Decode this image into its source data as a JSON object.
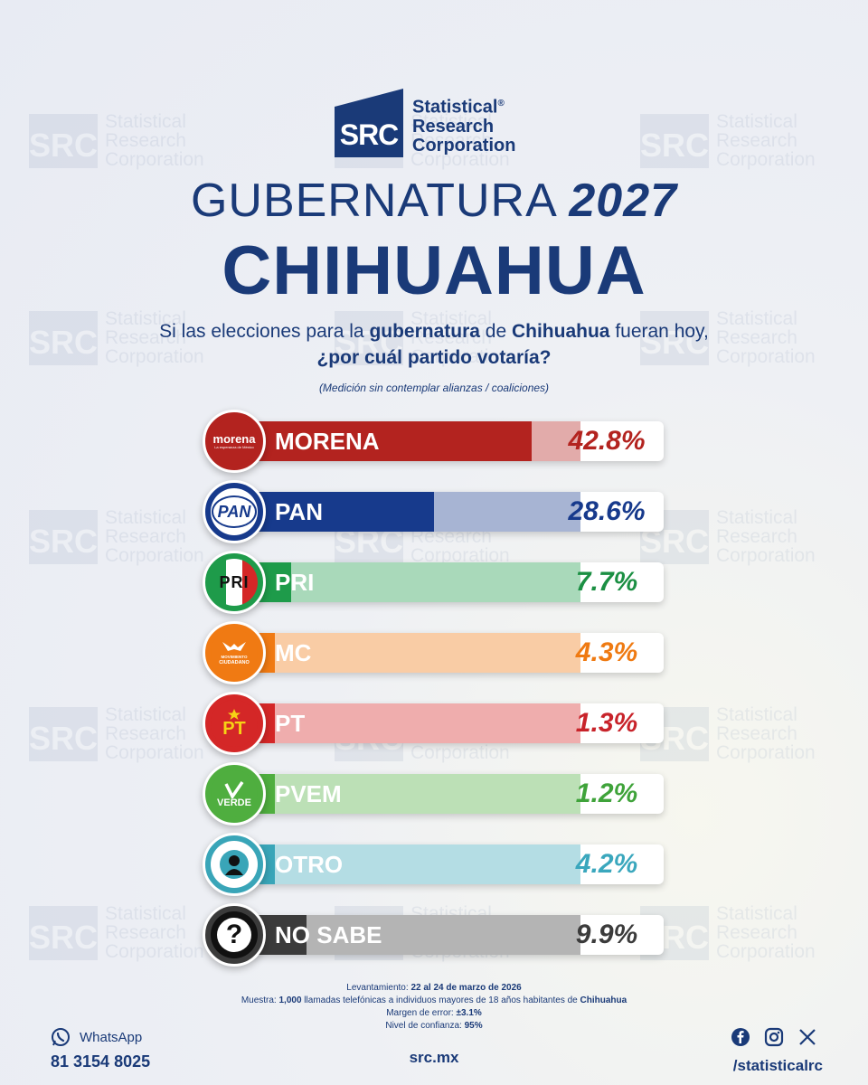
{
  "brand": {
    "logo_initials": "SRC",
    "name_line1": "Statistical",
    "name_line2": "Research",
    "name_line3": "Corporation",
    "registered": "®",
    "color": "#1a3a78"
  },
  "header": {
    "title_word": "GUBERNATURA",
    "title_year": "2027",
    "state": "CHIHUAHUA"
  },
  "question": {
    "part1": "Si las elecciones para la ",
    "bold1": "gubernatura",
    "part2": " de ",
    "bold2": "Chihuahua",
    "part3": " fueran hoy,",
    "line2": "¿por cuál partido votaría?",
    "note": "(Medición sin contemplar alianzas / coaliciones)"
  },
  "chart_data": {
    "type": "bar",
    "orientation": "horizontal",
    "unit": "%",
    "categories": [
      "MORENA",
      "PAN",
      "PRI",
      "MC",
      "PT",
      "PVEM",
      "OTRO",
      "NO SABE"
    ],
    "values": [
      42.8,
      28.6,
      7.7,
      4.3,
      1.3,
      1.2,
      4.2,
      9.9
    ],
    "labels": [
      "42.8%",
      "28.6%",
      "7.7%",
      "4.3%",
      "1.3%",
      "1.2%",
      "4.2%",
      "9.9%"
    ],
    "colors": [
      "#b3231f",
      "#173a8c",
      "#1e9b4a",
      "#f07a13",
      "#d42727",
      "#4fae3f",
      "#39a5b8",
      "#3b3b3b"
    ],
    "value_colors": [
      "#b3231f",
      "#173a8c",
      "#1b8f43",
      "#ef7a12",
      "#c8232a",
      "#3fa33a",
      "#3aa7bd",
      "#3b3b3b"
    ],
    "xlim": [
      0,
      50
    ]
  },
  "logos": {
    "morena_text": "morena",
    "morena_sub": "La esperanza de México",
    "pan_text": "PAN",
    "pri_text": "PRI",
    "mc_text1": "MOVIMIENTO",
    "mc_text2": "CIUDADANO",
    "pt_text": "PT",
    "verde_text": "VERDE",
    "nosabe_text": "?"
  },
  "footer": {
    "lev_label": "Levantamiento: ",
    "lev_value": "22 al 24 de marzo de 2026",
    "muestra_label": "Muestra: ",
    "muestra_n": "1,000",
    "muestra_text": " llamadas telefónicas a individuos mayores de 18 años habitantes de ",
    "muestra_place": "Chihuahua",
    "error_label": "Margen de error: ",
    "error_value": "±3.1%",
    "conf_label": "Nivel de confianza: ",
    "conf_value": "95%"
  },
  "contact": {
    "whatsapp_label": "WhatsApp",
    "whatsapp_number": "81 3154 8025",
    "website": "src.mx",
    "social_handle": "/statisticalrc"
  }
}
